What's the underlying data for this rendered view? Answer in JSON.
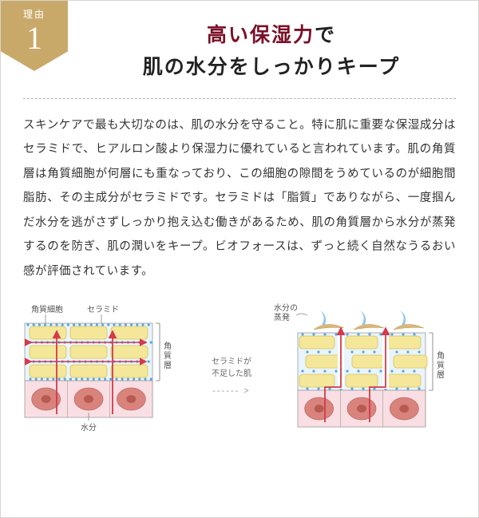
{
  "badge": {
    "label": "理由",
    "number": "1"
  },
  "title_accent": "高い保湿力",
  "title_rest1": "で",
  "title_line2": "肌の水分をしっかりキープ",
  "body": "スキンケアで最も大切なのは、肌の水分を守ること。特に肌に重要な保湿成分はセラミドで、ヒアルロン酸より保湿力に優れていると言われています。肌の角質層は角質細胞が何層にも重なっており、この細胞の隙間をうめているのが細胞間脂肪、その主成分がセラミドです。セラミドは「脂質」でありながら、一度掴んだ水分を逃がさずしっかり抱え込む働きがあるため、肌の角質層から水分が蒸発するのを防ぎ、肌の潤いをキープ。ビオフォースは、ずっと続く自然なうるおい感が評価されています。",
  "between": {
    "line1": "セラミドが",
    "line2": "不足した肌"
  },
  "panelA": {
    "label_keratinocyte": "角質細胞",
    "label_ceramide": "セラミド",
    "label_moisture": "水分",
    "bracket_label": "角質層",
    "colors": {
      "bg": "#e9f4fc",
      "cell": "#f5e79a",
      "cell_stroke": "#d8c257",
      "dot": "#5aa6e0",
      "dermis": "#f9dfe3",
      "dermis_cell": "#d67a73",
      "arrow": "#d33a4a",
      "border": "#9c9c9c"
    }
  },
  "panelB": {
    "label_evap": "水分の",
    "label_evap2": "蒸発",
    "bracket_label": "角質層",
    "colors": {
      "bg": "#e9f4fc",
      "cell": "#f5e79a",
      "cell_stroke": "#d8c257",
      "dot": "#5aa6e0",
      "dermis": "#f9dfe3",
      "dermis_cell": "#d67a73",
      "arrow": "#d33a4a",
      "gap": "#ffffff",
      "border": "#9c9c9c",
      "surface": "#d9b77a",
      "vapor": "#7fbfe6"
    }
  }
}
